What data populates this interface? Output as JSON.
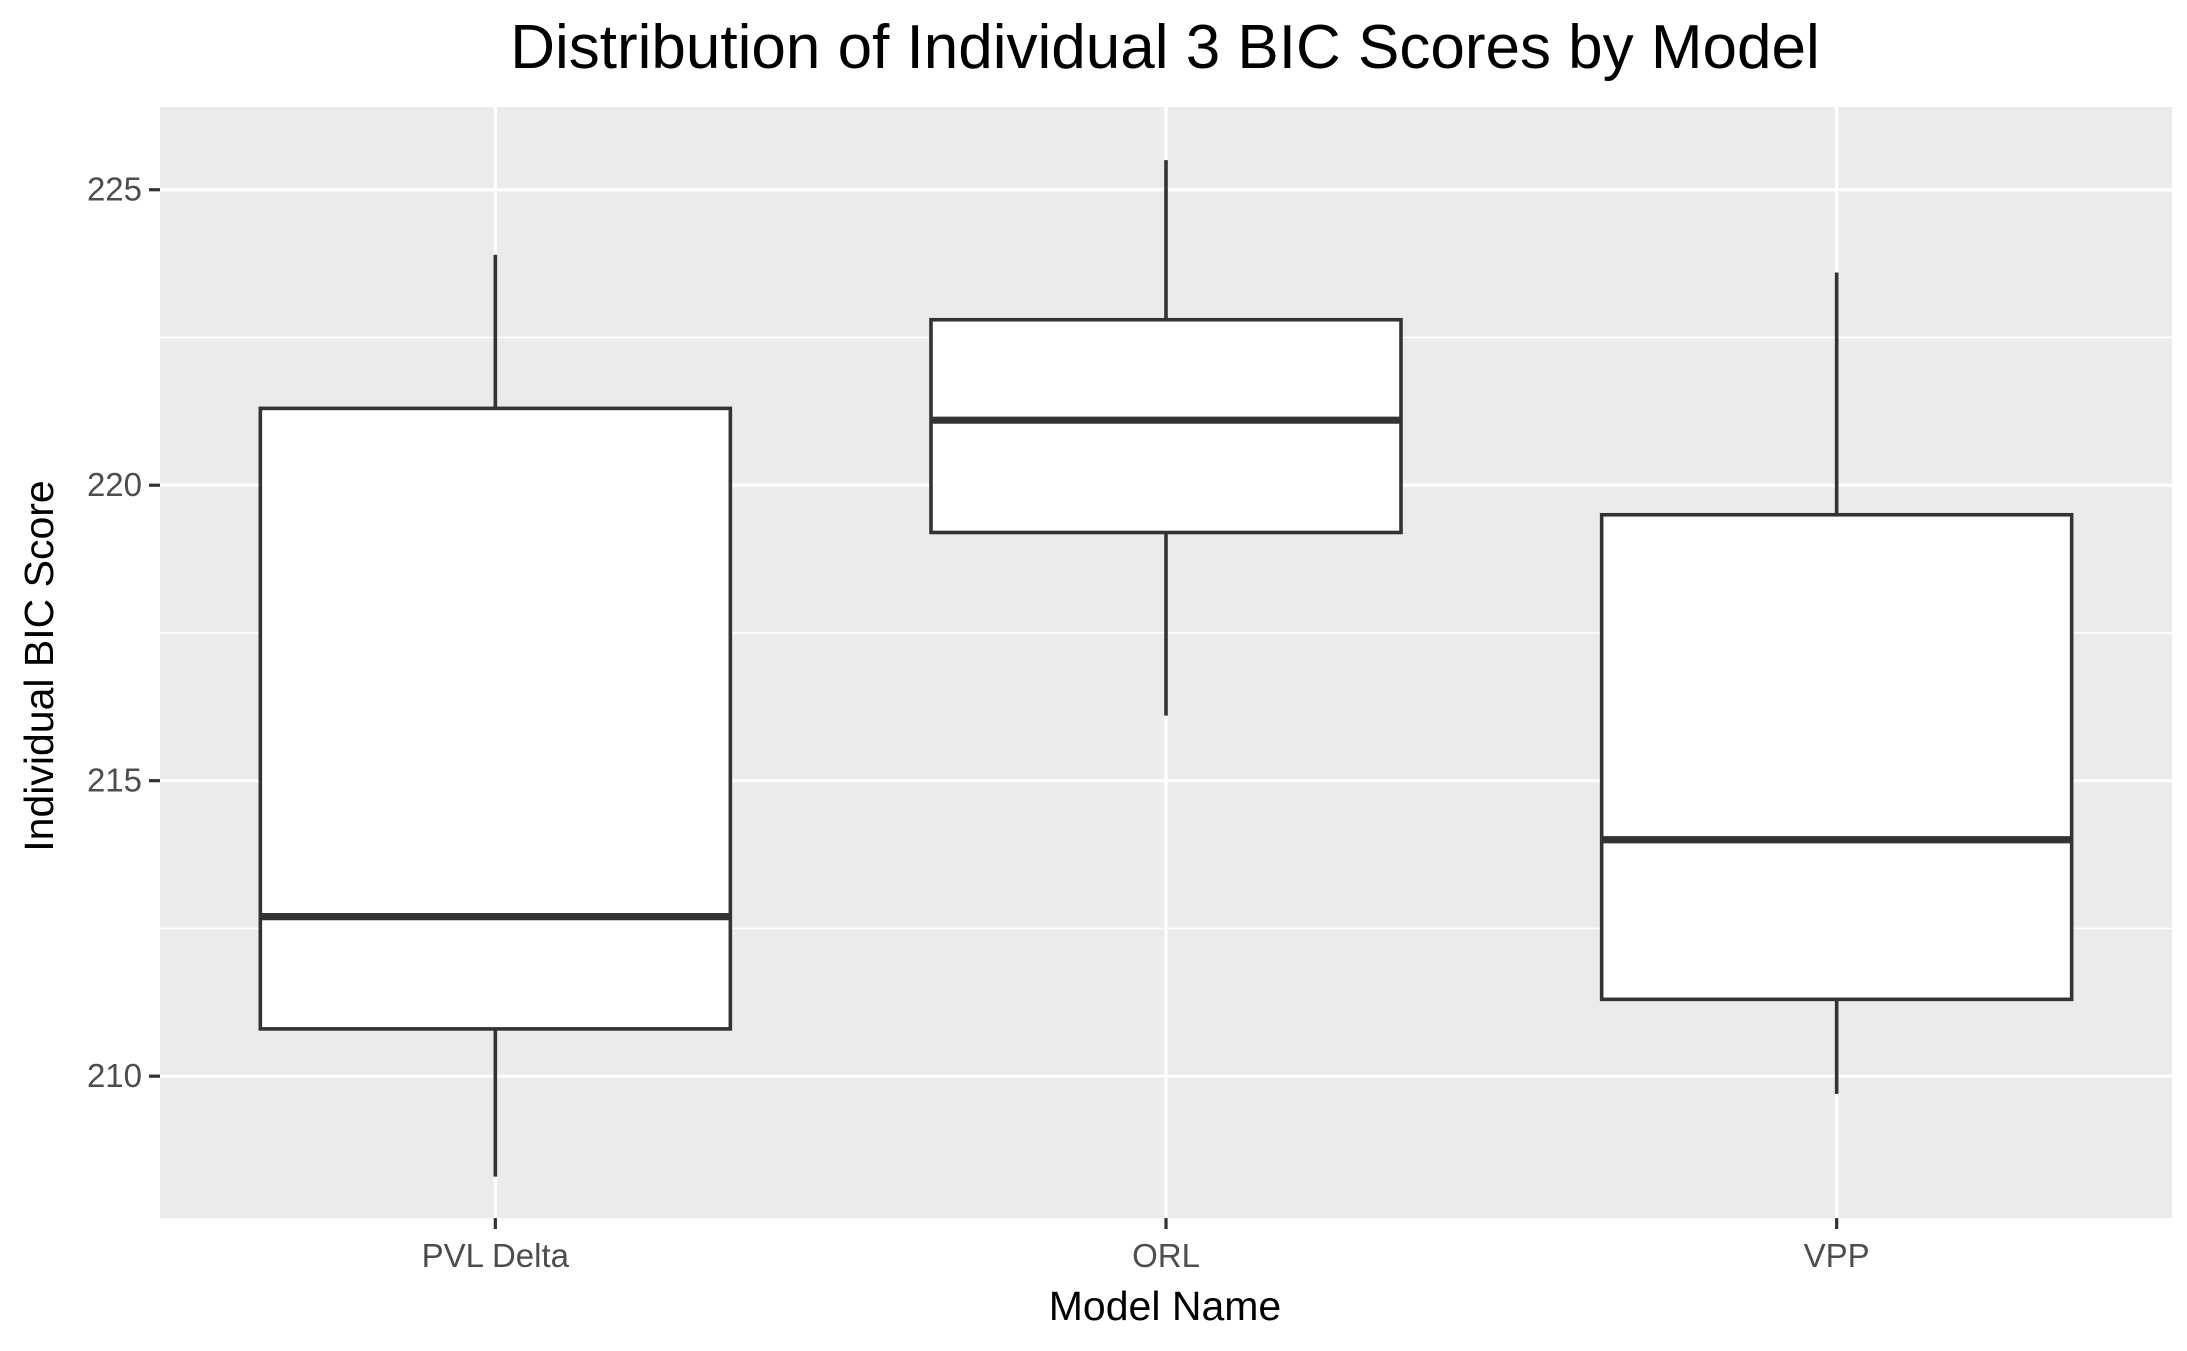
{
  "chart_data": {
    "type": "boxplot",
    "title": "Distribution of Individual 3 BIC Scores by Model",
    "xlabel": "Model Name",
    "ylabel": "Individual BIC Score",
    "ylim": [
      207.6,
      226.4
    ],
    "yticks": [
      210,
      215,
      220,
      225
    ],
    "ytick_labels": [
      "210",
      "215",
      "220",
      "225"
    ],
    "grid": true,
    "legend": "none",
    "categories": [
      "PVL Delta",
      "ORL",
      "VPP"
    ],
    "boxes": [
      {
        "category": "PVL Delta",
        "min": 208.3,
        "q1": 210.8,
        "median": 212.7,
        "q3": 221.3,
        "max": 223.9
      },
      {
        "category": "ORL",
        "min": 216.1,
        "q1": 219.2,
        "median": 221.1,
        "q3": 222.8,
        "max": 225.5
      },
      {
        "category": "VPP",
        "min": 209.7,
        "q1": 211.3,
        "median": 214.0,
        "q3": 219.5,
        "max": 223.6
      }
    ],
    "colors": {
      "panel_background": "#ebebeb",
      "grid_major": "#ffffff",
      "grid_minor": "#ffffff",
      "box_fill": "#ffffff",
      "box_stroke": "#333333",
      "tick_mark": "#333333",
      "tick_text": "#4d4d4d"
    }
  }
}
